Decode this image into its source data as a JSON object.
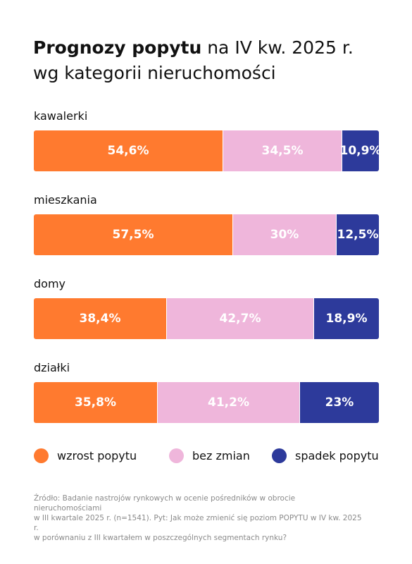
{
  "title": {
    "bold_part": "Prognozy popytu",
    "rest_line1": " na IV kw. 2025 r.",
    "line2": "wg kategorii nieruchomości"
  },
  "chart_data": {
    "type": "bar",
    "orientation": "horizontal-stacked-100",
    "categories": [
      "kawalerki",
      "mieszkania",
      "domy",
      "działki"
    ],
    "series": [
      {
        "name": "wzrost popytu",
        "color": "#ff7a2f",
        "values": [
          54.6,
          57.5,
          38.4,
          35.8
        ],
        "labels": [
          "54,6%",
          "57,5%",
          "38,4%",
          "35,8%"
        ]
      },
      {
        "name": "bez zmian",
        "color": "#efb6db",
        "values": [
          34.5,
          30,
          42.7,
          41.2
        ],
        "labels": [
          "34,5%",
          "30%",
          "42,7%",
          "41,2%"
        ]
      },
      {
        "name": "spadek popytu",
        "color": "#2d3a9b",
        "values": [
          10.9,
          12.5,
          18.9,
          23
        ],
        "labels": [
          "10,9%",
          "12,5%",
          "18,9%",
          "23%"
        ]
      }
    ],
    "legend_position": "bottom"
  },
  "source": {
    "line1": "Źródło: Badanie nastrojów rynkowych w ocenie pośredników w obrocie nieruchomościami",
    "line2": "w III kwartale 2025 r. (n=1541). Pyt: Jak może zmienić się poziom POPYTU w IV kw. 2025 r.",
    "line3": "w porównaniu z III kwartałem w poszczególnych segmentach rynku?"
  }
}
